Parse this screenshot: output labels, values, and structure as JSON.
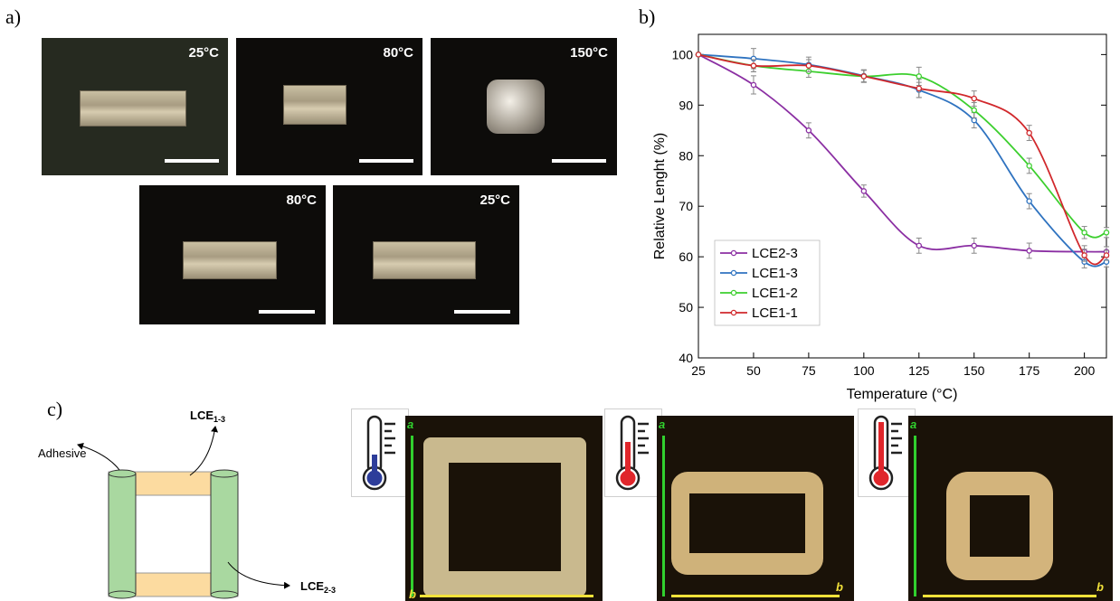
{
  "panel_labels": {
    "a": "a)",
    "b": "b)",
    "c": "c)"
  },
  "panel_a": {
    "photos": [
      {
        "temp": "25°C"
      },
      {
        "temp": "80°C"
      },
      {
        "temp": "150°C"
      },
      {
        "temp": "80°C"
      },
      {
        "temp": "25°C"
      }
    ]
  },
  "panel_c": {
    "labels": {
      "adhesive": "Adhesive",
      "lce13": "LCE",
      "lce13_sub": "1-3",
      "lce23": "LCE",
      "lce23_sub": "2-3",
      "a": "a",
      "b": "b"
    },
    "colors": {
      "lce13_fill": "#fcdba0",
      "lce23_fill": "#a9d8a0",
      "blue_bulb": "#2d3d9a",
      "red_bulb": "#e0262b",
      "a_line": "#31d02e",
      "b_line": "#f3e23a"
    }
  },
  "chart_data": {
    "type": "line",
    "xlabel": "Temperature (°C)",
    "ylabel": "Relative Lenght (%)",
    "xlim": [
      25,
      210
    ],
    "ylim": [
      40,
      104
    ],
    "xticks": [
      25,
      50,
      75,
      100,
      125,
      150,
      175,
      200
    ],
    "yticks": [
      40,
      50,
      60,
      70,
      80,
      90,
      100
    ],
    "legend_placement": "bottom-left",
    "grid": false,
    "series": [
      {
        "name": "LCE2-3",
        "color": "#8b2fa3",
        "x": [
          25,
          50,
          75,
          100,
          125,
          150,
          175,
          200,
          210
        ],
        "y": [
          100,
          94,
          85,
          73,
          62.2,
          62.2,
          61.2,
          61,
          61
        ],
        "err": [
          0,
          1.8,
          1.5,
          1.2,
          1.5,
          1.5,
          1.5,
          1.2,
          1
        ]
      },
      {
        "name": "LCE1-3",
        "color": "#2f73c0",
        "x": [
          25,
          50,
          75,
          100,
          125,
          150,
          175,
          200,
          210
        ],
        "y": [
          100,
          99.2,
          98,
          95.8,
          93,
          87,
          71,
          59,
          59
        ],
        "err": [
          0,
          2,
          1.5,
          1.2,
          1.5,
          1.5,
          1.5,
          1.2,
          1
        ]
      },
      {
        "name": "LCE1-2",
        "color": "#3ccf2e",
        "x": [
          25,
          50,
          75,
          100,
          125,
          150,
          175,
          200,
          210
        ],
        "y": [
          100,
          97.8,
          96.7,
          95.7,
          95.7,
          89,
          78,
          64.8,
          64.8
        ],
        "err": [
          0,
          1.2,
          1.2,
          1.2,
          1.8,
          1.5,
          1.5,
          1.2,
          1
        ]
      },
      {
        "name": "LCE1-1",
        "color": "#d1282c",
        "x": [
          25,
          50,
          75,
          100,
          125,
          150,
          175,
          200,
          210
        ],
        "y": [
          100,
          97.8,
          97.8,
          95.7,
          93.3,
          91.3,
          84.5,
          60.3,
          60.3
        ],
        "err": [
          0,
          1.2,
          1.2,
          1.2,
          1.8,
          1.5,
          1.5,
          1.2,
          1
        ]
      }
    ]
  }
}
